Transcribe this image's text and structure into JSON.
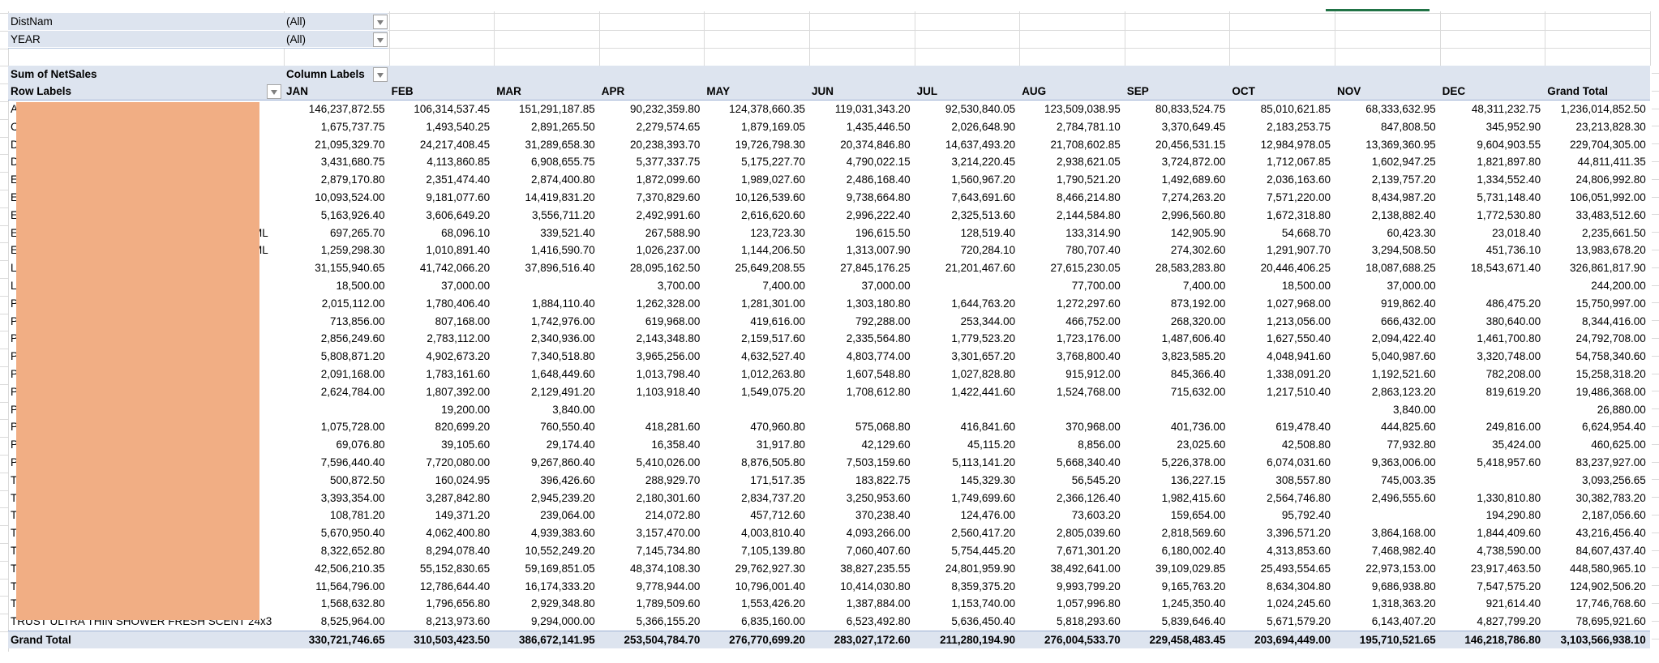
{
  "filters": [
    {
      "field": "DistNam",
      "value": "(All)"
    },
    {
      "field": "YEAR",
      "value": "(All)"
    }
  ],
  "pivot": {
    "values_label": "Sum of NetSales",
    "column_labels": "Column Labels",
    "row_labels": "Row Labels",
    "columns": [
      "JAN",
      "FEB",
      "MAR",
      "APR",
      "MAY",
      "JUN",
      "JUL",
      "AUG",
      "SEP",
      "OCT",
      "NOV",
      "DEC",
      "Grand Total"
    ],
    "rows": [
      {
        "label": "A",
        "tail": "",
        "values": [
          "146,237,872.55",
          "106,314,537.45",
          "151,291,187.85",
          "90,232,359.80",
          "124,378,660.35",
          "119,031,343.20",
          "92,530,840.05",
          "123,509,038.95",
          "80,833,524.75",
          "85,010,621.85",
          "68,333,632.95",
          "48,311,232.75",
          "1,236,014,852.50"
        ]
      },
      {
        "label": "C",
        "tail": "",
        "values": [
          "1,675,737.75",
          "1,493,540.25",
          "2,891,265.50",
          "2,279,574.65",
          "1,879,169.05",
          "1,435,446.50",
          "2,026,648.90",
          "2,784,781.10",
          "3,370,649.45",
          "2,183,253.75",
          "847,808.50",
          "345,952.90",
          "23,213,828.30"
        ]
      },
      {
        "label": "D",
        "tail": "",
        "values": [
          "21,095,329.70",
          "24,217,408.45",
          "31,289,658.30",
          "20,238,393.70",
          "19,726,798.30",
          "20,374,846.80",
          "14,637,493.20",
          "21,708,602.85",
          "20,456,531.15",
          "12,984,978.05",
          "13,369,360.95",
          "9,604,903.55",
          "229,704,305.00"
        ]
      },
      {
        "label": "D",
        "tail": "",
        "values": [
          "3,431,680.75",
          "4,113,860.85",
          "6,908,655.75",
          "5,377,337.75",
          "5,175,227.70",
          "4,790,022.15",
          "3,214,220.45",
          "2,938,621.05",
          "3,724,872.00",
          "1,712,067.85",
          "1,602,947.25",
          "1,821,897.80",
          "44,811,411.35"
        ]
      },
      {
        "label": "E",
        "tail": "",
        "values": [
          "2,879,170.80",
          "2,351,474.40",
          "2,874,400.80",
          "1,872,099.60",
          "1,989,027.60",
          "2,486,168.40",
          "1,560,967.20",
          "1,790,521.20",
          "1,492,689.60",
          "2,036,163.60",
          "2,139,757.20",
          "1,334,552.40",
          "24,806,992.80"
        ]
      },
      {
        "label": "E",
        "tail": "",
        "values": [
          "10,093,524.00",
          "9,181,077.60",
          "14,419,831.20",
          "7,370,829.60",
          "10,126,539.60",
          "9,738,664.80",
          "7,643,691.60",
          "8,466,214.80",
          "7,274,263.20",
          "7,571,220.00",
          "8,434,987.20",
          "5,731,148.40",
          "106,051,992.00"
        ]
      },
      {
        "label": "E",
        "tail": "",
        "values": [
          "5,163,926.40",
          "3,606,649.20",
          "3,556,711.20",
          "2,492,991.60",
          "2,616,620.60",
          "2,996,222.40",
          "2,325,513.60",
          "2,144,584.80",
          "2,996,560.80",
          "1,672,318.80",
          "2,138,882.40",
          "1,772,530.80",
          "33,483,512.60"
        ]
      },
      {
        "label": "E",
        "tail": "ML",
        "values": [
          "697,265.70",
          "68,096.10",
          "339,521.40",
          "267,588.90",
          "123,723.30",
          "196,615.50",
          "128,519.40",
          "133,314.90",
          "142,905.90",
          "54,668.70",
          "60,423.30",
          "23,018.40",
          "2,235,661.50"
        ]
      },
      {
        "label": "E",
        "tail": "ML",
        "values": [
          "1,259,298.30",
          "1,010,891.40",
          "1,416,590.70",
          "1,026,237.00",
          "1,144,206.50",
          "1,313,007.90",
          "720,284.10",
          "780,707.40",
          "274,302.60",
          "1,291,907.70",
          "3,294,508.50",
          "451,736.10",
          "13,983,678.20"
        ]
      },
      {
        "label": "L",
        "tail": "",
        "values": [
          "31,155,940.65",
          "41,742,066.20",
          "37,896,516.40",
          "28,095,162.50",
          "25,649,208.55",
          "27,845,176.25",
          "21,201,467.60",
          "27,615,230.05",
          "28,583,283.80",
          "20,446,406.25",
          "18,087,688.25",
          "18,543,671.40",
          "326,861,817.90"
        ]
      },
      {
        "label": "L",
        "tail": "",
        "values": [
          "18,500.00",
          "37,000.00",
          "",
          "3,700.00",
          "7,400.00",
          "37,000.00",
          "",
          "77,700.00",
          "7,400.00",
          "18,500.00",
          "37,000.00",
          "",
          "244,200.00"
        ]
      },
      {
        "label": "P",
        "tail": "",
        "values": [
          "2,015,112.00",
          "1,780,406.40",
          "1,884,110.40",
          "1,262,328.00",
          "1,281,301.00",
          "1,303,180.80",
          "1,644,763.20",
          "1,272,297.60",
          "873,192.00",
          "1,027,968.00",
          "919,862.40",
          "486,475.20",
          "15,750,997.00"
        ]
      },
      {
        "label": "P",
        "tail": "",
        "values": [
          "713,856.00",
          "807,168.00",
          "1,742,976.00",
          "619,968.00",
          "419,616.00",
          "792,288.00",
          "253,344.00",
          "466,752.00",
          "268,320.00",
          "1,213,056.00",
          "666,432.00",
          "380,640.00",
          "8,344,416.00"
        ]
      },
      {
        "label": "P",
        "tail": "",
        "values": [
          "2,856,249.60",
          "2,783,112.00",
          "2,340,936.00",
          "2,143,348.80",
          "2,159,517.60",
          "2,335,564.80",
          "1,779,523.20",
          "1,723,176.00",
          "1,487,606.40",
          "1,627,550.40",
          "2,094,422.40",
          "1,461,700.80",
          "24,792,708.00"
        ]
      },
      {
        "label": "P",
        "tail": "",
        "values": [
          "5,808,871.20",
          "4,902,673.20",
          "7,340,518.80",
          "3,965,256.00",
          "4,632,527.40",
          "4,803,774.00",
          "3,301,657.20",
          "3,768,800.40",
          "3,823,585.20",
          "4,048,941.60",
          "5,040,987.60",
          "3,320,748.00",
          "54,758,340.60"
        ]
      },
      {
        "label": "P",
        "tail": "",
        "values": [
          "2,091,168.00",
          "1,783,161.60",
          "1,648,449.60",
          "1,013,798.40",
          "1,012,263.80",
          "1,607,548.80",
          "1,027,828.80",
          "915,912.00",
          "845,366.40",
          "1,338,091.20",
          "1,192,521.60",
          "782,208.00",
          "15,258,318.20"
        ]
      },
      {
        "label": "P",
        "tail": "",
        "values": [
          "2,624,784.00",
          "1,807,392.00",
          "2,129,491.20",
          "1,103,918.40",
          "1,549,075.20",
          "1,708,612.80",
          "1,422,441.60",
          "1,524,768.00",
          "715,632.00",
          "1,217,510.40",
          "2,863,123.20",
          "819,619.20",
          "19,486,368.00"
        ]
      },
      {
        "label": "P",
        "tail": "",
        "values": [
          "",
          "19,200.00",
          "3,840.00",
          "",
          "",
          "",
          "",
          "",
          "",
          "",
          "3,840.00",
          "",
          "26,880.00"
        ]
      },
      {
        "label": "P",
        "tail": "",
        "values": [
          "1,075,728.00",
          "820,699.20",
          "760,550.40",
          "418,281.60",
          "470,960.80",
          "575,068.80",
          "416,841.60",
          "370,968.00",
          "401,736.00",
          "619,478.40",
          "444,825.60",
          "249,816.00",
          "6,624,954.40"
        ]
      },
      {
        "label": "P",
        "tail": "",
        "values": [
          "69,076.80",
          "39,105.60",
          "29,174.40",
          "16,358.40",
          "31,917.80",
          "42,129.60",
          "45,115.20",
          "8,856.00",
          "23,025.60",
          "42,508.80",
          "77,932.80",
          "35,424.00",
          "460,625.00"
        ]
      },
      {
        "label": "P",
        "tail": "",
        "values": [
          "7,596,440.40",
          "7,720,080.00",
          "9,267,860.40",
          "5,410,026.00",
          "8,876,505.80",
          "7,503,159.60",
          "5,113,141.20",
          "5,668,340.40",
          "5,226,378.00",
          "6,074,031.60",
          "9,363,006.00",
          "5,418,957.60",
          "83,237,927.00"
        ]
      },
      {
        "label": "T",
        "tail": "",
        "values": [
          "500,872.50",
          "160,024.95",
          "396,426.60",
          "288,929.70",
          "171,517.35",
          "183,822.75",
          "145,329.30",
          "56,545.20",
          "136,227.15",
          "308,557.80",
          "745,003.35",
          "",
          "3,093,256.65"
        ]
      },
      {
        "label": "T",
        "tail": "",
        "values": [
          "3,393,354.00",
          "3,287,842.80",
          "2,945,239.20",
          "2,180,301.60",
          "2,834,737.20",
          "3,250,953.60",
          "1,749,699.60",
          "2,366,126.40",
          "1,982,415.60",
          "2,564,746.80",
          "2,496,555.60",
          "1,330,810.80",
          "30,382,783.20"
        ]
      },
      {
        "label": "T",
        "tail": "",
        "values": [
          "108,781.20",
          "149,371.20",
          "239,064.00",
          "214,072.80",
          "457,712.60",
          "370,238.40",
          "124,476.00",
          "73,603.20",
          "159,654.00",
          "95,792.40",
          "",
          "194,290.80",
          "2,187,056.60"
        ]
      },
      {
        "label": "T",
        "tail": "",
        "values": [
          "5,670,950.40",
          "4,062,400.80",
          "4,939,383.60",
          "3,157,470.00",
          "4,003,810.40",
          "4,093,266.00",
          "2,560,417.20",
          "2,805,039.60",
          "2,818,569.60",
          "3,396,571.20",
          "3,864,168.00",
          "1,844,409.60",
          "43,216,456.40"
        ]
      },
      {
        "label": "T",
        "tail": "",
        "values": [
          "8,322,652.80",
          "8,294,078.40",
          "10,552,249.20",
          "7,145,734.80",
          "7,105,139.80",
          "7,060,407.60",
          "5,754,445.20",
          "7,671,301.20",
          "6,180,002.40",
          "4,313,853.60",
          "7,468,982.40",
          "4,738,590.00",
          "84,607,437.40"
        ]
      },
      {
        "label": "T",
        "tail": "",
        "values": [
          "42,506,210.35",
          "55,152,830.65",
          "59,169,851.05",
          "48,374,108.30",
          "29,762,927.30",
          "38,827,235.55",
          "24,801,959.90",
          "38,492,641.00",
          "39,109,029.85",
          "25,493,554.65",
          "22,973,153.00",
          "23,917,463.50",
          "448,580,965.10"
        ]
      },
      {
        "label": "T",
        "tail": "",
        "values": [
          "11,564,796.00",
          "12,786,644.40",
          "16,174,333.20",
          "9,778,944.00",
          "10,796,001.40",
          "10,414,030.80",
          "8,359,375.20",
          "9,993,799.20",
          "9,165,763.20",
          "8,634,304.80",
          "9,686,938.80",
          "7,547,575.20",
          "124,902,506.20"
        ]
      },
      {
        "label": "T",
        "tail": "",
        "values": [
          "1,568,632.80",
          "1,796,656.80",
          "2,929,348.80",
          "1,789,509.60",
          "1,553,426.20",
          "1,387,884.00",
          "1,153,740.00",
          "1,057,996.80",
          "1,245,350.40",
          "1,024,245.60",
          "1,318,363.20",
          "921,614.40",
          "17,746,768.60"
        ]
      },
      {
        "label": "TRUST ULTRA THIN SHOWER FRESH SCENT 24x3",
        "tail": "",
        "values": [
          "8,525,964.00",
          "8,213,973.60",
          "9,294,000.00",
          "5,366,155.20",
          "6,835,160.00",
          "6,523,492.80",
          "5,636,450.40",
          "5,818,293.60",
          "5,839,646.40",
          "5,671,579.20",
          "6,143,407.20",
          "4,827,799.20",
          "78,695,921.60"
        ]
      }
    ],
    "grand_total": {
      "label": "Grand Total",
      "values": [
        "330,721,746.65",
        "310,503,423.50",
        "386,672,141.95",
        "253,504,784.70",
        "276,770,699.20",
        "283,027,172.60",
        "211,280,194.90",
        "276,004,533.70",
        "229,458,483.45",
        "203,694,449.00",
        "195,710,521.65",
        "146,218,786.80",
        "3,103,566,938.10"
      ]
    }
  },
  "colors": {
    "header_band": "#DDE4EF",
    "redaction": "#F1AE84",
    "selection": "#217346"
  }
}
